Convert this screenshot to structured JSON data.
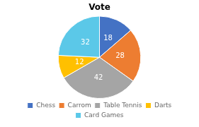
{
  "chart_data": {
    "type": "pie",
    "title": "Vote",
    "categories": [
      "Chess",
      "Carrom",
      "Table Tennis",
      "Darts",
      "Card Games"
    ],
    "values": [
      18,
      28,
      42,
      12,
      32
    ],
    "colors": [
      "#4472c4",
      "#ed7d31",
      "#a5a5a5",
      "#ffc000",
      "#5bc8e8"
    ],
    "data_labels": true,
    "legend": "bottom"
  }
}
